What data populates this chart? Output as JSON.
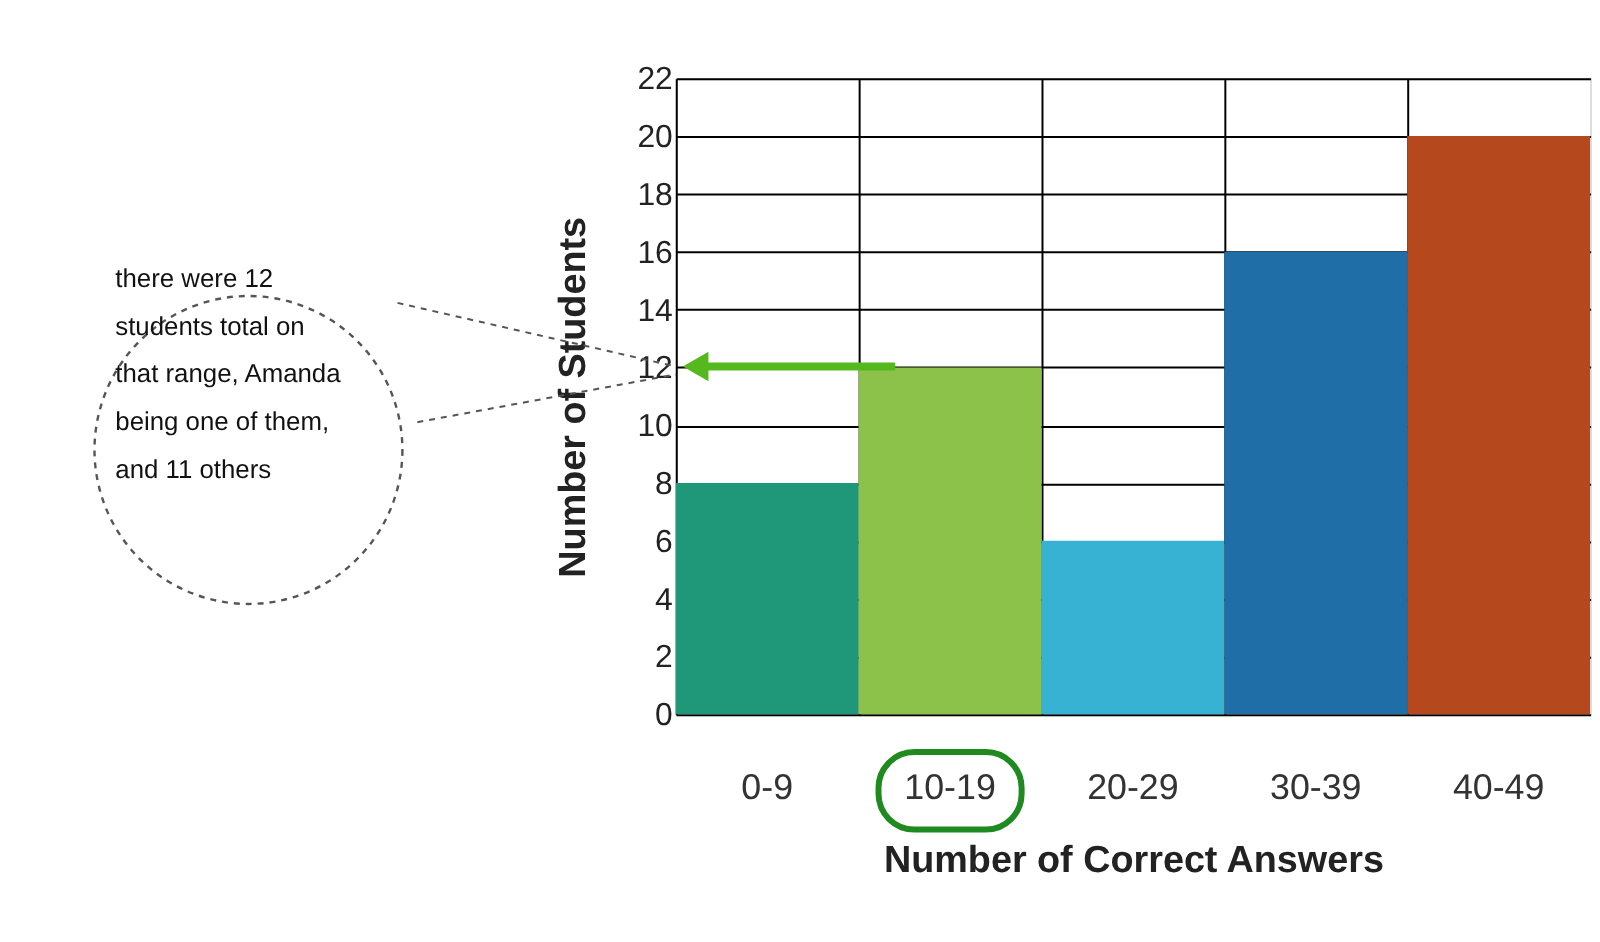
{
  "chart_data": {
    "type": "bar",
    "xlabel": "Number of Correct Answers",
    "ylabel": "Number of Students",
    "categories": [
      "0-9",
      "10-19",
      "20-29",
      "30-39",
      "40-49"
    ],
    "values": [
      8,
      12,
      6,
      16,
      20
    ],
    "colors": [
      "#1e9878",
      "#8cc24a",
      "#38b2d2",
      "#1f6ea8",
      "#b5481c"
    ],
    "ylim": [
      0,
      22
    ],
    "yticks": [
      0,
      2,
      4,
      6,
      8,
      10,
      12,
      14,
      16,
      18,
      20,
      22
    ],
    "grid": true,
    "legend": false,
    "annotations": [
      "there were 12 students total on that range, Amanda being one of them, and 11 others"
    ]
  }
}
